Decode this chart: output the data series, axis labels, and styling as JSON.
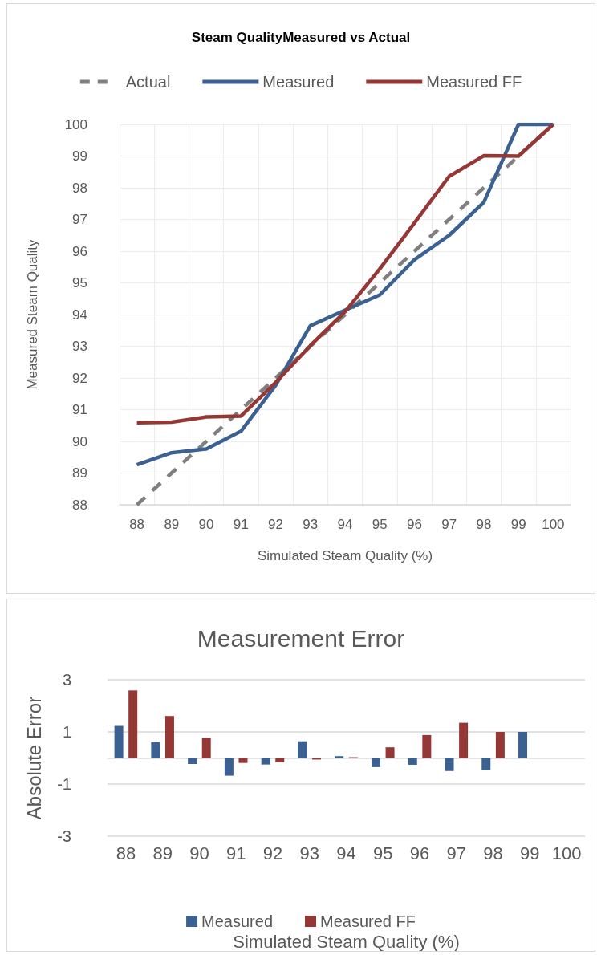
{
  "chart_data": [
    {
      "type": "line",
      "title": "Steam QualityMeasured vs Actual",
      "xlabel": "Simulated Steam Quality (%)",
      "ylabel": "Measured Steam Quality",
      "categories": [
        "88",
        "89",
        "90",
        "91",
        "92",
        "93",
        "94",
        "95",
        "96",
        "97",
        "98",
        "99",
        "100"
      ],
      "series": [
        {
          "name": "Actual",
          "color": "#7f7f7f",
          "line_style": "dashed",
          "values": [
            88,
            89,
            90,
            91,
            92,
            93,
            94,
            95,
            96,
            97,
            98,
            99,
            100
          ]
        },
        {
          "name": "Measured",
          "color": "#3a6191",
          "values": [
            89.26,
            89.64,
            89.76,
            90.32,
            91.77,
            93.65,
            94.14,
            94.62,
            95.73,
            96.5,
            97.54,
            100,
            100
          ]
        },
        {
          "name": "Measured FF",
          "color": "#953735",
          "values": [
            90.59,
            90.61,
            90.77,
            90.8,
            91.86,
            93.02,
            94.09,
            95.44,
            96.89,
            98.36,
            99.01,
            99.0,
            100
          ]
        }
      ],
      "ylim": [
        88,
        100
      ],
      "yticks": [
        88,
        89,
        90,
        91,
        92,
        93,
        94,
        95,
        96,
        97,
        98,
        99,
        100
      ],
      "grid": true,
      "legend": "top",
      "marker": "none"
    },
    {
      "type": "bar",
      "title": "Measurement Error",
      "xlabel": "Simulated Steam Quality (%)",
      "ylabel": "Absolute Error",
      "categories": [
        "88",
        "89",
        "90",
        "91",
        "92",
        "93",
        "94",
        "95",
        "96",
        "97",
        "98",
        "99",
        "100"
      ],
      "series": [
        {
          "name": "Measured",
          "color": "#3a6191",
          "values": [
            1.23,
            0.61,
            -0.23,
            -0.68,
            -0.25,
            0.64,
            0.07,
            -0.35,
            -0.26,
            -0.5,
            -0.47,
            1.0,
            0
          ]
        },
        {
          "name": "Measured FF",
          "color": "#953735",
          "values": [
            2.59,
            1.61,
            0.77,
            -0.19,
            -0.17,
            -0.06,
            0.03,
            0.41,
            0.88,
            1.35,
            1.0,
            0,
            0
          ]
        }
      ],
      "ylim": [
        -3,
        3
      ],
      "yticks": [
        -3,
        -1,
        1,
        3
      ],
      "grid": "y",
      "legend": "bottom"
    }
  ]
}
